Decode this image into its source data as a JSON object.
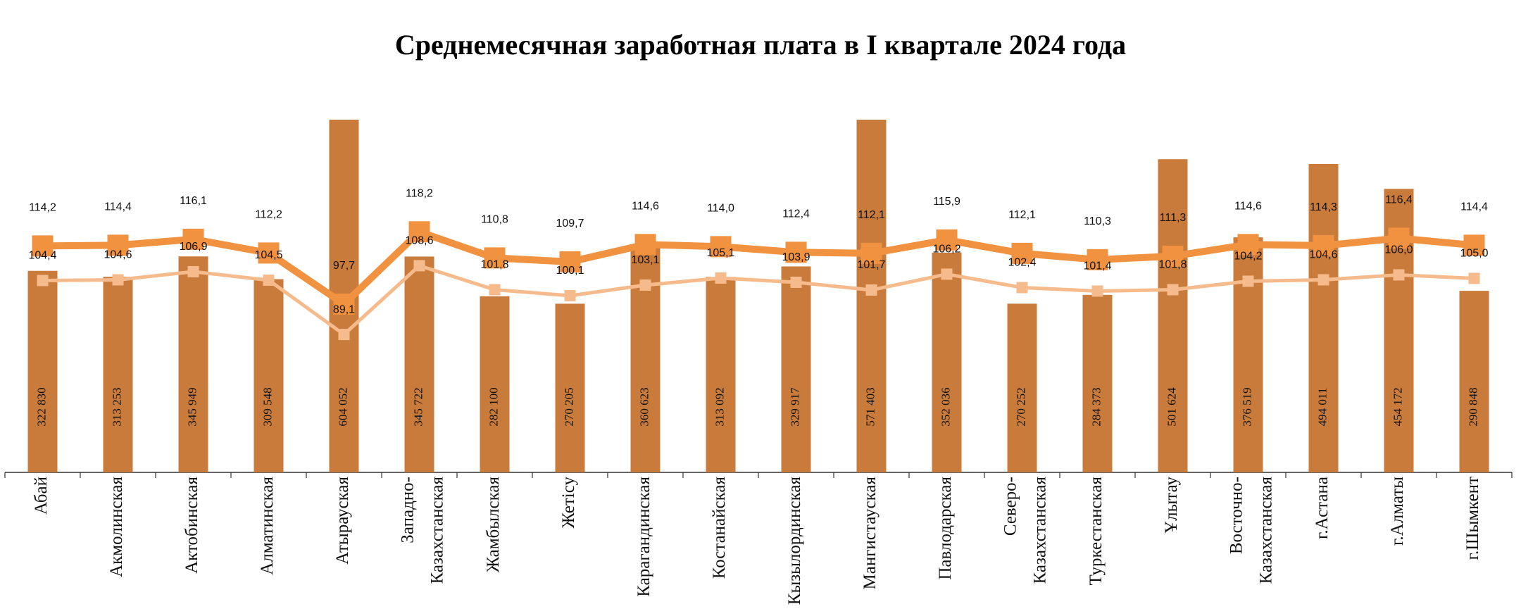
{
  "chart_data": {
    "type": "bar",
    "title": "Среднемесячная заработная плата в I квартале 2024 года",
    "categories": [
      "Абай",
      "Акмолинская",
      "Актобинская",
      "Алматинская",
      "Атырауская",
      "Западно-\nКазахстанская",
      "Жамбылская",
      "Жетісу",
      "Карагандинская",
      "Костанайская",
      "Кызылординская",
      "Мангистауская",
      "Павлодарская",
      "Северо-\nКазахстанская",
      "Туркестанская",
      "Ұлытау",
      "Восточно-\nКазахстанская",
      "г.Астана",
      "г.Алматы",
      "г.Шымкент"
    ],
    "ylim": [
      0,
      565000
    ],
    "y2lim": [
      50,
      150
    ],
    "series": [
      {
        "type": "bar",
        "color": "#c97b3b",
        "values": [
          322830,
          313253,
          345949,
          309548,
          604052,
          345722,
          282100,
          270205,
          360623,
          313092,
          329917,
          571403,
          352036,
          270252,
          284373,
          501624,
          376519,
          494011,
          454172,
          290848
        ],
        "value_labels": [
          "322 830",
          "313 253",
          "345 949",
          "309 548",
          "604 052",
          "345 722",
          "282 100",
          "270 205",
          "360 623",
          "313 092",
          "329 917",
          "571 403",
          "352 036",
          "270 252",
          "284 373",
          "501 624",
          "376 519",
          "494 011",
          "454 172",
          "290 848"
        ]
      },
      {
        "type": "line",
        "axis": "y2",
        "color": "#f0923f",
        "values": [
          114.2,
          114.4,
          116.1,
          112.2,
          97.7,
          118.2,
          110.8,
          109.7,
          114.6,
          114.0,
          112.4,
          112.1,
          115.9,
          112.1,
          110.3,
          111.3,
          114.6,
          114.3,
          116.4,
          114.4
        ],
        "value_labels": [
          "114,2",
          "114,4",
          "116,1",
          "112,2",
          "97,7",
          "118,2",
          "110,8",
          "109,7",
          "114,6",
          "114,0",
          "112,4",
          "112,1",
          "115,9",
          "112,1",
          "110,3",
          "111,3",
          "114,6",
          "114,3",
          "116,4",
          "114,4"
        ]
      },
      {
        "type": "line",
        "axis": "y2",
        "color": "#f6bb8c",
        "values": [
          104.4,
          104.6,
          106.9,
          104.5,
          89.1,
          108.6,
          101.8,
          100.1,
          103.1,
          105.1,
          103.9,
          101.7,
          106.2,
          102.4,
          101.4,
          101.8,
          104.2,
          104.6,
          106.0,
          105.0
        ],
        "value_labels": [
          "104,4",
          "104,6",
          "106,9",
          "104,5",
          "89,1",
          "108,6",
          "101,8",
          "100,1",
          "103,1",
          "105,1",
          "103,9",
          "101,7",
          "106,2",
          "102,4",
          "101,4",
          "101,8",
          "104,2",
          "104,6",
          "106,0",
          "105,0"
        ]
      }
    ]
  }
}
